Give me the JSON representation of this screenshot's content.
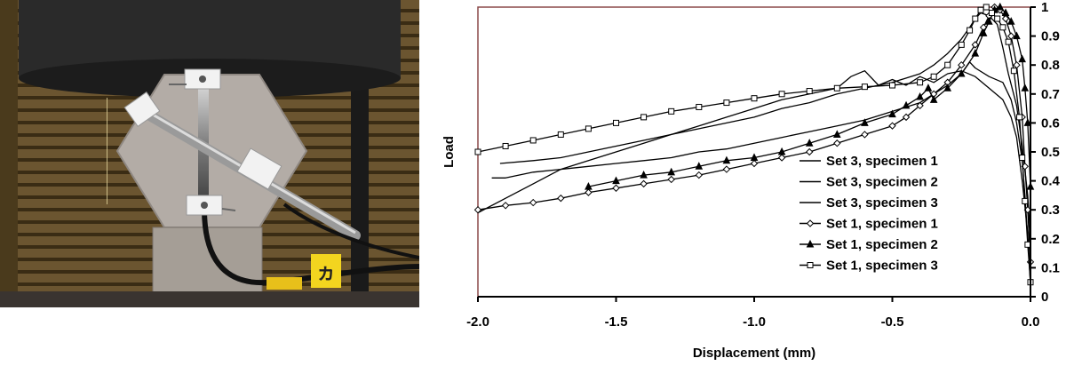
{
  "photo": {
    "label_text": "ヵ"
  },
  "chart_data": {
    "type": "line",
    "title": "",
    "xlabel": "Displacement (mm)",
    "ylabel": "Load",
    "xlim": [
      -2.0,
      0.0
    ],
    "ylim": [
      0,
      1
    ],
    "xticks": [
      -2.0,
      -1.5,
      -1.0,
      -0.5,
      0.0
    ],
    "xtick_labels": [
      "-2.0",
      "-1.5",
      "-1.0",
      "-0.5",
      "0.0"
    ],
    "yticks": [
      0,
      0.1,
      0.2,
      0.3,
      0.4,
      0.5,
      0.6,
      0.7,
      0.8,
      0.9,
      1
    ],
    "ytick_labels": [
      "0",
      "0.1",
      "0.2",
      "0.3",
      "0.4",
      "0.5",
      "0.6",
      "0.7",
      "0.8",
      "0.9",
      "1"
    ],
    "y_axis_side": "right",
    "grid": false,
    "legend_position": "bottom-right",
    "colors": {
      "frame": "#8B4A4A",
      "line": "#000000"
    },
    "series": [
      {
        "name": "Set 3, specimen 1",
        "marker": "none",
        "points": [
          [
            -1.95,
            0.41
          ],
          [
            -1.9,
            0.41
          ],
          [
            -1.8,
            0.43
          ],
          [
            -1.7,
            0.44
          ],
          [
            -1.6,
            0.45
          ],
          [
            -1.5,
            0.46
          ],
          [
            -1.4,
            0.47
          ],
          [
            -1.3,
            0.48
          ],
          [
            -1.2,
            0.5
          ],
          [
            -1.1,
            0.51
          ],
          [
            -1.0,
            0.53
          ],
          [
            -0.9,
            0.55
          ],
          [
            -0.8,
            0.57
          ],
          [
            -0.7,
            0.59
          ],
          [
            -0.6,
            0.61
          ],
          [
            -0.5,
            0.64
          ],
          [
            -0.4,
            0.67
          ],
          [
            -0.35,
            0.7
          ],
          [
            -0.3,
            0.73
          ],
          [
            -0.25,
            0.77
          ],
          [
            -0.22,
            0.81
          ],
          [
            -0.2,
            0.79
          ],
          [
            -0.15,
            0.76
          ],
          [
            -0.1,
            0.74
          ],
          [
            -0.07,
            0.68
          ],
          [
            -0.05,
            0.6
          ],
          [
            -0.03,
            0.47
          ],
          [
            -0.02,
            0.35
          ],
          [
            -0.01,
            0.2
          ],
          [
            0.0,
            0.07
          ]
        ]
      },
      {
        "name": "Set 3, specimen 2",
        "marker": "none",
        "points": [
          [
            -1.92,
            0.46
          ],
          [
            -1.8,
            0.47
          ],
          [
            -1.7,
            0.48
          ],
          [
            -1.6,
            0.5
          ],
          [
            -1.5,
            0.52
          ],
          [
            -1.4,
            0.54
          ],
          [
            -1.3,
            0.56
          ],
          [
            -1.2,
            0.58
          ],
          [
            -1.1,
            0.6
          ],
          [
            -1.0,
            0.62
          ],
          [
            -0.9,
            0.65
          ],
          [
            -0.8,
            0.67
          ],
          [
            -0.7,
            0.7
          ],
          [
            -0.6,
            0.72
          ],
          [
            -0.5,
            0.74
          ],
          [
            -0.4,
            0.77
          ],
          [
            -0.35,
            0.8
          ],
          [
            -0.3,
            0.84
          ],
          [
            -0.25,
            0.89
          ],
          [
            -0.22,
            0.93
          ],
          [
            -0.2,
            0.96
          ],
          [
            -0.18,
            0.98
          ],
          [
            -0.15,
            0.97
          ],
          [
            -0.12,
            0.94
          ],
          [
            -0.1,
            0.86
          ],
          [
            -0.08,
            0.77
          ],
          [
            -0.05,
            0.66
          ],
          [
            -0.03,
            0.52
          ],
          [
            -0.01,
            0.35
          ],
          [
            0.0,
            0.2
          ]
        ]
      },
      {
        "name": "Set 3, specimen 3",
        "marker": "none",
        "points": [
          [
            -2.0,
            0.29
          ],
          [
            -1.9,
            0.34
          ],
          [
            -1.8,
            0.39
          ],
          [
            -1.7,
            0.44
          ],
          [
            -1.6,
            0.47
          ],
          [
            -1.5,
            0.5
          ],
          [
            -1.4,
            0.53
          ],
          [
            -1.3,
            0.56
          ],
          [
            -1.2,
            0.59
          ],
          [
            -1.1,
            0.62
          ],
          [
            -1.0,
            0.65
          ],
          [
            -0.9,
            0.68
          ],
          [
            -0.8,
            0.7
          ],
          [
            -0.7,
            0.72
          ],
          [
            -0.65,
            0.76
          ],
          [
            -0.6,
            0.78
          ],
          [
            -0.55,
            0.73
          ],
          [
            -0.5,
            0.75
          ],
          [
            -0.45,
            0.73
          ],
          [
            -0.4,
            0.76
          ],
          [
            -0.35,
            0.74
          ],
          [
            -0.3,
            0.77
          ],
          [
            -0.25,
            0.78
          ],
          [
            -0.2,
            0.76
          ],
          [
            -0.15,
            0.72
          ],
          [
            -0.1,
            0.68
          ],
          [
            -0.07,
            0.62
          ],
          [
            -0.05,
            0.55
          ],
          [
            -0.03,
            0.4
          ],
          [
            -0.01,
            0.22
          ],
          [
            0.0,
            0.04
          ]
        ]
      },
      {
        "name": "Set 1, specimen 1",
        "marker": "diamond",
        "points": [
          [
            -2.0,
            0.3
          ],
          [
            -1.9,
            0.315
          ],
          [
            -1.8,
            0.325
          ],
          [
            -1.7,
            0.34
          ],
          [
            -1.6,
            0.36
          ],
          [
            -1.5,
            0.375
          ],
          [
            -1.4,
            0.39
          ],
          [
            -1.3,
            0.405
          ],
          [
            -1.2,
            0.42
          ],
          [
            -1.1,
            0.44
          ],
          [
            -1.0,
            0.46
          ],
          [
            -0.9,
            0.48
          ],
          [
            -0.8,
            0.5
          ],
          [
            -0.7,
            0.53
          ],
          [
            -0.6,
            0.56
          ],
          [
            -0.5,
            0.59
          ],
          [
            -0.45,
            0.62
          ],
          [
            -0.4,
            0.66
          ],
          [
            -0.35,
            0.7
          ],
          [
            -0.3,
            0.74
          ],
          [
            -0.25,
            0.8
          ],
          [
            -0.2,
            0.87
          ],
          [
            -0.17,
            0.93
          ],
          [
            -0.15,
            0.97
          ],
          [
            -0.13,
            1.0
          ],
          [
            -0.11,
            0.99
          ],
          [
            -0.09,
            0.96
          ],
          [
            -0.07,
            0.9
          ],
          [
            -0.05,
            0.8
          ],
          [
            -0.03,
            0.62
          ],
          [
            -0.02,
            0.45
          ],
          [
            -0.01,
            0.3
          ],
          [
            0.0,
            0.12
          ]
        ]
      },
      {
        "name": "Set 1, specimen 2",
        "marker": "triangle",
        "points": [
          [
            -1.6,
            0.38
          ],
          [
            -1.5,
            0.4
          ],
          [
            -1.4,
            0.42
          ],
          [
            -1.3,
            0.43
          ],
          [
            -1.2,
            0.45
          ],
          [
            -1.1,
            0.47
          ],
          [
            -1.0,
            0.48
          ],
          [
            -0.9,
            0.5
          ],
          [
            -0.8,
            0.53
          ],
          [
            -0.7,
            0.56
          ],
          [
            -0.6,
            0.6
          ],
          [
            -0.5,
            0.63
          ],
          [
            -0.45,
            0.66
          ],
          [
            -0.4,
            0.69
          ],
          [
            -0.37,
            0.72
          ],
          [
            -0.35,
            0.68
          ],
          [
            -0.3,
            0.72
          ],
          [
            -0.25,
            0.77
          ],
          [
            -0.2,
            0.84
          ],
          [
            -0.17,
            0.91
          ],
          [
            -0.15,
            0.95
          ],
          [
            -0.13,
            0.99
          ],
          [
            -0.11,
            1.0
          ],
          [
            -0.09,
            0.98
          ],
          [
            -0.07,
            0.95
          ],
          [
            -0.05,
            0.9
          ],
          [
            -0.03,
            0.82
          ],
          [
            -0.02,
            0.72
          ],
          [
            -0.01,
            0.6
          ],
          [
            0.0,
            0.38
          ]
        ]
      },
      {
        "name": "Set 1, specimen 3",
        "marker": "square",
        "points": [
          [
            -2.0,
            0.5
          ],
          [
            -1.9,
            0.52
          ],
          [
            -1.8,
            0.54
          ],
          [
            -1.7,
            0.56
          ],
          [
            -1.6,
            0.58
          ],
          [
            -1.5,
            0.6
          ],
          [
            -1.4,
            0.62
          ],
          [
            -1.3,
            0.64
          ],
          [
            -1.2,
            0.655
          ],
          [
            -1.1,
            0.67
          ],
          [
            -1.0,
            0.685
          ],
          [
            -0.9,
            0.7
          ],
          [
            -0.8,
            0.71
          ],
          [
            -0.7,
            0.72
          ],
          [
            -0.6,
            0.725
          ],
          [
            -0.5,
            0.73
          ],
          [
            -0.4,
            0.74
          ],
          [
            -0.35,
            0.76
          ],
          [
            -0.3,
            0.8
          ],
          [
            -0.25,
            0.87
          ],
          [
            -0.22,
            0.92
          ],
          [
            -0.2,
            0.96
          ],
          [
            -0.18,
            0.99
          ],
          [
            -0.16,
            1.0
          ],
          [
            -0.14,
            0.98
          ],
          [
            -0.12,
            0.96
          ],
          [
            -0.1,
            0.93
          ],
          [
            -0.08,
            0.88
          ],
          [
            -0.06,
            0.78
          ],
          [
            -0.04,
            0.62
          ],
          [
            -0.03,
            0.48
          ],
          [
            -0.02,
            0.33
          ],
          [
            -0.01,
            0.18
          ],
          [
            0.0,
            0.05
          ]
        ]
      }
    ]
  }
}
